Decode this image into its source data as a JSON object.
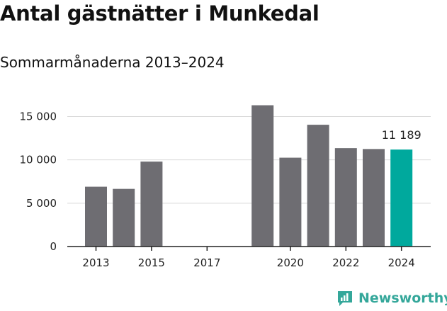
{
  "title": "Antal gästnätter i Munkedal",
  "subtitle": "Sommarmånaderna 2013–2024",
  "brand": {
    "name": "Newsworthy",
    "icon": "newsworthy-logo-icon"
  },
  "colors": {
    "bar": "#6e6d72",
    "highlight": "#00a99d",
    "grid": "#d9d9d9",
    "axis": "#222222",
    "brand": "#34a79a"
  },
  "chart_data": {
    "type": "bar",
    "categories": [
      "2013",
      "2014",
      "2015",
      "2016",
      "2017",
      "2018",
      "2019",
      "2020",
      "2021",
      "2022",
      "2023",
      "2024"
    ],
    "x_tick_labels": [
      "2013",
      "2015",
      "2017",
      "2020",
      "2022",
      "2024"
    ],
    "values": [
      6900,
      6650,
      9800,
      null,
      null,
      null,
      16300,
      10250,
      14050,
      11350,
      11250,
      11189
    ],
    "highlight": "2024",
    "data_labels": [
      {
        "category": "2024",
        "text": "11 189"
      }
    ],
    "y_ticks": [
      0,
      5000,
      10000,
      15000
    ],
    "y_tick_labels": [
      "0",
      "5 000",
      "10 000",
      "15 000"
    ],
    "ylim": [
      0,
      17000
    ],
    "grid": true
  }
}
